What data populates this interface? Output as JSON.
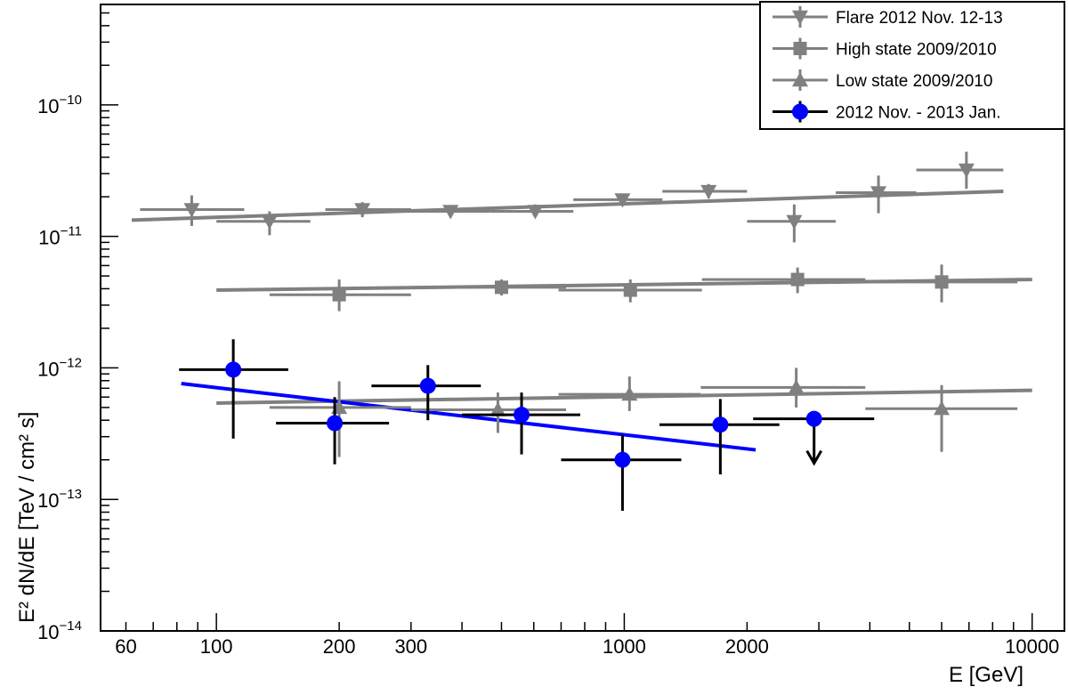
{
  "chart_data": {
    "type": "scatter",
    "xlabel": "E [GeV]",
    "ylabel": "E² dN/dE [TeV / cm² s]",
    "xscale": "log",
    "yscale": "log",
    "xlim": [
      52,
      12000
    ],
    "ylim": [
      1e-14,
      5.8e-10
    ],
    "x_tick_labels": [
      "60",
      "100",
      "200",
      "300",
      "1000",
      "2000",
      "10000"
    ],
    "x_tick_values": [
      60,
      100,
      200,
      300,
      1000,
      2000,
      10000
    ],
    "y_tick_labels": [
      {
        "base": "10",
        "exp": "−10",
        "value": 1e-10
      },
      {
        "base": "10",
        "exp": "−11",
        "value": 1e-11
      },
      {
        "base": "10",
        "exp": "−12",
        "value": 1e-12
      },
      {
        "base": "10",
        "exp": "−13",
        "value": 1e-13
      },
      {
        "base": "10",
        "exp": "−14",
        "value": 1e-14
      }
    ],
    "legend_position": "top-right",
    "series": [
      {
        "name": "Flare 2012 Nov. 12-13",
        "marker": "triangle-down",
        "color": "#808080",
        "points": [
          {
            "x": 87,
            "y": 1.6e-11,
            "xlo": 65,
            "xhi": 117,
            "ylo": 1.2e-11,
            "yhi": 2.05e-11
          },
          {
            "x": 135,
            "y": 1.3e-11,
            "xlo": 100,
            "xhi": 170,
            "ylo": 1.02e-11,
            "yhi": 1.55e-11
          },
          {
            "x": 228,
            "y": 1.6e-11,
            "xlo": 185,
            "xhi": 300,
            "ylo": 1.4e-11,
            "yhi": 1.82e-11
          },
          {
            "x": 375,
            "y": 1.55e-11,
            "xlo": 300,
            "xhi": 470,
            "ylo": 1.42e-11,
            "yhi": 1.72e-11
          },
          {
            "x": 605,
            "y": 1.55e-11,
            "xlo": 470,
            "xhi": 750,
            "ylo": 1.4e-11,
            "yhi": 1.75e-11
          },
          {
            "x": 990,
            "y": 1.9e-11,
            "xlo": 750,
            "xhi": 1240,
            "ylo": 1.7e-11,
            "yhi": 2.1e-11
          },
          {
            "x": 1610,
            "y": 2.2e-11,
            "xlo": 1240,
            "xhi": 2000,
            "ylo": 1.95e-11,
            "yhi": 2.5e-11
          },
          {
            "x": 2610,
            "y": 1.3e-11,
            "xlo": 2000,
            "xhi": 3300,
            "ylo": 9e-12,
            "yhi": 1.75e-11
          },
          {
            "x": 4200,
            "y": 2.15e-11,
            "xlo": 3300,
            "xhi": 5200,
            "ylo": 1.5e-11,
            "yhi": 2.9e-11
          },
          {
            "x": 6900,
            "y": 3.2e-11,
            "xlo": 5200,
            "xhi": 8500,
            "ylo": 2.3e-11,
            "yhi": 4.4e-11
          }
        ],
        "fit": {
          "x": [
            62,
            8500
          ],
          "y": [
            1.33e-11,
            2.2e-11
          ],
          "color": "#808080"
        }
      },
      {
        "name": "High state 2009/2010",
        "marker": "square",
        "color": "#808080",
        "points": [
          {
            "x": 200,
            "y": 3.6e-12,
            "xlo": 135,
            "xhi": 300,
            "ylo": 2.7e-12,
            "yhi": 4.7e-12
          },
          {
            "x": 500,
            "y": 4.1e-12,
            "xlo": 300,
            "xhi": 720,
            "ylo": 3.55e-12,
            "yhi": 4.7e-12
          },
          {
            "x": 1035,
            "y": 3.9e-12,
            "xlo": 690,
            "xhi": 1550,
            "ylo": 3.15e-12,
            "yhi": 4.7e-12
          },
          {
            "x": 2660,
            "y": 4.7e-12,
            "xlo": 1550,
            "xhi": 3900,
            "ylo": 3.7e-12,
            "yhi": 5.8e-12
          },
          {
            "x": 6000,
            "y": 4.5e-12,
            "xlo": 3900,
            "xhi": 9200,
            "ylo": 3.15e-12,
            "yhi": 6.1e-12
          }
        ],
        "fit": {
          "x": [
            100,
            10000
          ],
          "y": [
            3.9e-12,
            4.7e-12
          ],
          "color": "#808080"
        }
      },
      {
        "name": "Low state 2009/2010",
        "marker": "triangle-up",
        "color": "#808080",
        "points": [
          {
            "x": 200,
            "y": 5e-13,
            "xlo": 135,
            "xhi": 300,
            "ylo": 2.1e-13,
            "yhi": 7.9e-13
          },
          {
            "x": 490,
            "y": 4.8e-13,
            "xlo": 300,
            "xhi": 720,
            "ylo": 3.2e-13,
            "yhi": 6.5e-13
          },
          {
            "x": 1030,
            "y": 6.3e-13,
            "xlo": 690,
            "xhi": 1540,
            "ylo": 4.7e-13,
            "yhi": 8.6e-13
          },
          {
            "x": 2640,
            "y": 7.1e-13,
            "xlo": 1540,
            "xhi": 3900,
            "ylo": 5e-13,
            "yhi": 1e-12
          },
          {
            "x": 6000,
            "y": 4.9e-13,
            "xlo": 3900,
            "xhi": 9200,
            "ylo": 2.3e-13,
            "yhi": 7.4e-13
          }
        ],
        "fit": {
          "x": [
            100,
            10000
          ],
          "y": [
            5.4e-13,
            6.75e-13
          ],
          "color": "#808080"
        }
      },
      {
        "name": "2012 Nov. - 2013 Jan.",
        "marker": "circle",
        "color": "#0000ff",
        "errcolor": "#000000",
        "points": [
          {
            "x": 110,
            "y": 9.7e-13,
            "xlo": 81,
            "xhi": 150,
            "ylo": 2.9e-13,
            "yhi": 1.65e-12
          },
          {
            "x": 195,
            "y": 3.8e-13,
            "xlo": 140,
            "xhi": 265,
            "ylo": 1.85e-13,
            "yhi": 6e-13
          },
          {
            "x": 330,
            "y": 7.3e-13,
            "xlo": 240,
            "xhi": 445,
            "ylo": 4e-13,
            "yhi": 1.05e-12
          },
          {
            "x": 560,
            "y": 4.4e-13,
            "xlo": 400,
            "xhi": 780,
            "ylo": 2.2e-13,
            "yhi": 6.5e-13
          },
          {
            "x": 990,
            "y": 2e-13,
            "xlo": 700,
            "xhi": 1380,
            "ylo": 8.2e-14,
            "yhi": 3.1e-13
          },
          {
            "x": 1720,
            "y": 3.7e-13,
            "xlo": 1220,
            "xhi": 2400,
            "ylo": 1.55e-13,
            "yhi": 5.8e-13
          },
          {
            "x": 2920,
            "y": 4.1e-13,
            "xlo": 2070,
            "xhi": 4100,
            "upper_limit": true
          }
        ],
        "fit": {
          "x": [
            82,
            2100
          ],
          "y": [
            7.6e-13,
            2.38e-13
          ],
          "color": "#0000ff"
        }
      }
    ]
  }
}
